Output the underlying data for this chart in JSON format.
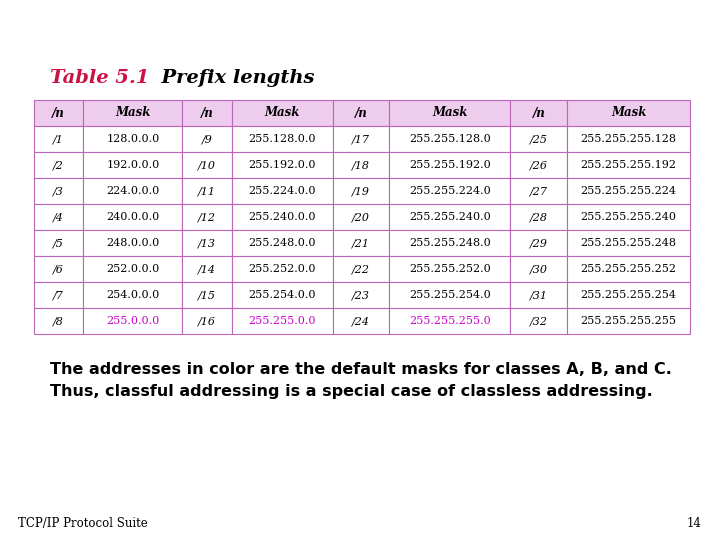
{
  "title_part1": "Table 5.1",
  "title_part2": "  Prefix lengths",
  "bg_color": "#ffffff",
  "table_border_color": "#bb66bb",
  "header_bg": "#eeccee",
  "row_bg_normal": "#ffffff",
  "highlight_color": "#cc00cc",
  "text_color": "#000000",
  "header_text_color": "#000000",
  "columns": [
    "/n",
    "Mask",
    "/n",
    "Mask",
    "/n",
    "Mask",
    "/n",
    "Mask"
  ],
  "rows": [
    [
      "/1",
      "128.0.0.0",
      "/9",
      "255.128.0.0",
      "/17",
      "255.255.128.0",
      "/25",
      "255.255.255.128"
    ],
    [
      "/2",
      "192.0.0.0",
      "/10",
      "255.192.0.0",
      "/18",
      "255.255.192.0",
      "/26",
      "255.255.255.192"
    ],
    [
      "/3",
      "224.0.0.0",
      "/11",
      "255.224.0.0",
      "/19",
      "255.255.224.0",
      "/27",
      "255.255.255.224"
    ],
    [
      "/4",
      "240.0.0.0",
      "/12",
      "255.240.0.0",
      "/20",
      "255.255.240.0",
      "/28",
      "255.255.255.240"
    ],
    [
      "/5",
      "248.0.0.0",
      "/13",
      "255.248.0.0",
      "/21",
      "255.255.248.0",
      "/29",
      "255.255.255.248"
    ],
    [
      "/6",
      "252.0.0.0",
      "/14",
      "255.252.0.0",
      "/22",
      "255.255.252.0",
      "/30",
      "255.255.255.252"
    ],
    [
      "/7",
      "254.0.0.0",
      "/15",
      "255.254.0.0",
      "/23",
      "255.255.254.0",
      "/31",
      "255.255.255.254"
    ],
    [
      "/8",
      "255.0.0.0",
      "/16",
      "255.255.0.0",
      "/24",
      "255.255.255.0",
      "/32",
      "255.255.255.255"
    ]
  ],
  "highlight_cols": [
    1,
    3,
    5
  ],
  "footer_text1": "The addresses in color are the default masks for classes A, B, and C.",
  "footer_text2": "Thus, classful addressing is a special case of classless addressing.",
  "bottom_left": "TCP/IP Protocol Suite",
  "bottom_right": "14",
  "title_color1": "#cc1144",
  "title_color2": "#000000",
  "title_fontsize": 14,
  "cell_fontsize": 8,
  "header_fontsize": 8.5,
  "footer_fontsize": 11.5
}
